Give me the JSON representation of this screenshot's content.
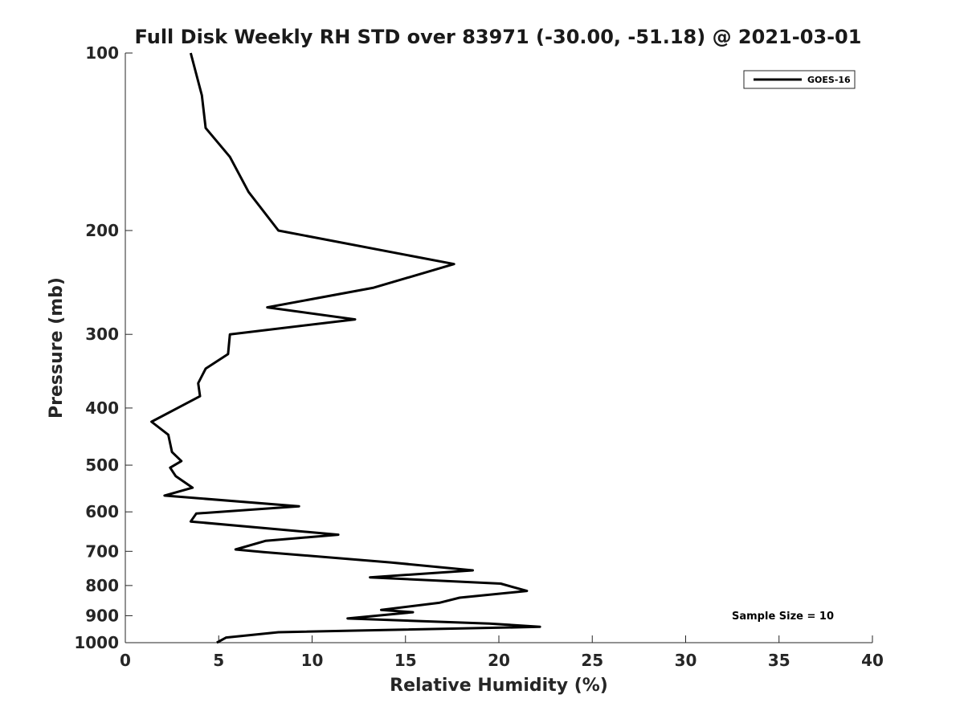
{
  "chart_data": {
    "type": "line",
    "title": "Full Disk Weekly RH STD over 83971 (-30.00, -51.18) @ 2021-03-01",
    "xlabel": "Relative Humidity (%)",
    "ylabel": "Pressure (mb)",
    "xlim": [
      0,
      40
    ],
    "ylim": [
      1000,
      100
    ],
    "yscale": "log",
    "x_ticks": [
      0,
      5,
      10,
      15,
      20,
      25,
      30,
      35,
      40
    ],
    "x_tick_labels": [
      "0",
      "5",
      "10",
      "15",
      "20",
      "25",
      "30",
      "35",
      "40"
    ],
    "y_ticks": [
      100,
      200,
      300,
      400,
      500,
      600,
      700,
      800,
      900,
      1000
    ],
    "y_tick_labels": [
      "100",
      "200",
      "300",
      "400",
      "500",
      "600",
      "700",
      "800",
      "900",
      "1000"
    ],
    "legend": {
      "position": "top-right",
      "entries": [
        "GOES-16"
      ]
    },
    "annotation": "Sample Size = 10",
    "series": [
      {
        "name": "GOES-16",
        "color": "#000000",
        "x": [
          3.5,
          4.1,
          4.3,
          5.6,
          6.6,
          8.2,
          17.6,
          13.3,
          7.6,
          12.3,
          5.6,
          5.5,
          4.3,
          3.9,
          4.0,
          1.4,
          2.3,
          2.5,
          3.0,
          2.4,
          2.7,
          3.6,
          2.1,
          9.3,
          3.8,
          3.5,
          11.4,
          7.5,
          5.9,
          7.4,
          14.2,
          18.6,
          13.1,
          20.1,
          21.5,
          17.9,
          16.8,
          13.7,
          15.4,
          11.9,
          19.5,
          22.2,
          8.2,
          5.4,
          4.9
        ],
        "y": [
          100,
          118,
          134,
          150,
          172,
          200,
          228,
          250,
          270,
          283,
          300,
          324,
          343,
          363,
          382,
          422,
          444,
          475,
          492,
          505,
          522,
          546,
          563,
          587,
          604,
          623,
          656,
          672,
          695,
          702,
          731,
          754,
          775,
          794,
          817,
          839,
          856,
          880,
          888,
          910,
          928,
          940,
          960,
          980,
          1000
        ]
      }
    ]
  }
}
